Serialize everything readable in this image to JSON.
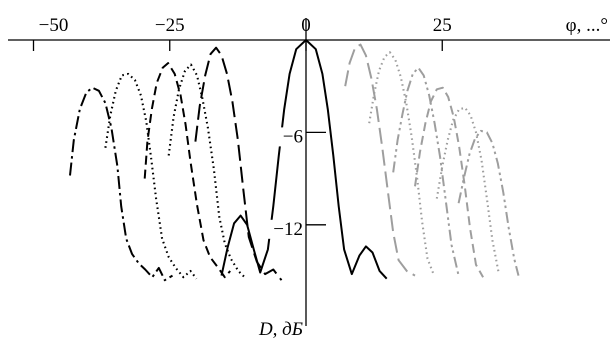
{
  "chart_data": {
    "type": "line",
    "title": "",
    "xlabel": "φ, ...°",
    "ylabel": "D, дБ",
    "xlim": [
      -50,
      40
    ],
    "ylim": [
      -17,
      0
    ],
    "x_ticks": [
      {
        "value": -50,
        "label": "−50"
      },
      {
        "value": -25,
        "label": "−25"
      },
      {
        "value": 0,
        "label": "0"
      },
      {
        "value": 25,
        "label": "25"
      }
    ],
    "y_ticks": [
      {
        "value": -6,
        "label": "−6"
      },
      {
        "value": -12,
        "label": "−12"
      }
    ],
    "grid": false,
    "legend": "none",
    "series": [
      {
        "values": [
          [
            -43.3,
            -8.8
          ],
          [
            -42.6,
            -6.5
          ],
          [
            -41.5,
            -4.5
          ],
          [
            -40.3,
            -3.4
          ],
          [
            -39.2,
            -3.1
          ],
          [
            -38.0,
            -3.3
          ],
          [
            -36.8,
            -4.1
          ],
          [
            -35.7,
            -5.7
          ],
          [
            -34.6,
            -8.2
          ],
          [
            -33.9,
            -10.8
          ],
          [
            -33.0,
            -12.9
          ],
          [
            -31.9,
            -13.9
          ],
          [
            -30.7,
            -14.5
          ],
          [
            -29.5,
            -14.9
          ],
          [
            -28.2,
            -15.4
          ],
          [
            -27.0,
            -14.8
          ],
          [
            -25.9,
            -15.6
          ],
          [
            -24.5,
            -15.3
          ]
        ],
        "color": "#000000",
        "style": "dashdot"
      },
      {
        "values": [
          [
            -36.8,
            -7.0
          ],
          [
            -35.9,
            -4.9
          ],
          [
            -34.9,
            -3.3
          ],
          [
            -33.8,
            -2.3
          ],
          [
            -32.6,
            -2.2
          ],
          [
            -31.4,
            -2.6
          ],
          [
            -30.3,
            -3.6
          ],
          [
            -29.3,
            -5.3
          ],
          [
            -28.4,
            -7.7
          ],
          [
            -27.5,
            -10.3
          ],
          [
            -26.4,
            -12.9
          ],
          [
            -25.2,
            -14.1
          ],
          [
            -23.9,
            -14.8
          ],
          [
            -22.5,
            -15.4
          ],
          [
            -21.2,
            -15.0
          ],
          [
            -20.1,
            -15.5
          ]
        ],
        "color": "#000000",
        "style": "dotted"
      },
      {
        "values": [
          [
            -29.6,
            -9.0
          ],
          [
            -29.1,
            -6.6
          ],
          [
            -28.3,
            -4.5
          ],
          [
            -27.4,
            -2.8
          ],
          [
            -26.3,
            -1.8
          ],
          [
            -25.3,
            -1.5
          ],
          [
            -24.1,
            -2.2
          ],
          [
            -23.0,
            -3.6
          ],
          [
            -22.1,
            -5.5
          ],
          [
            -21.2,
            -7.9
          ],
          [
            -20.0,
            -10.7
          ],
          [
            -18.8,
            -13.0
          ],
          [
            -17.6,
            -14.1
          ],
          [
            -16.1,
            -14.8
          ],
          [
            -14.9,
            -15.4
          ],
          [
            -13.9,
            -15.0
          ]
        ],
        "color": "#000000",
        "style": "dashed"
      },
      {
        "values": [
          [
            -25.2,
            -7.5
          ],
          [
            -24.3,
            -5.0
          ],
          [
            -23.3,
            -3.2
          ],
          [
            -22.2,
            -2.0
          ],
          [
            -21.1,
            -1.6
          ],
          [
            -20.0,
            -2.3
          ],
          [
            -19.0,
            -3.8
          ],
          [
            -18.0,
            -5.7
          ],
          [
            -16.9,
            -8.4
          ],
          [
            -15.9,
            -11.5
          ],
          [
            -14.9,
            -13.2
          ],
          [
            -13.8,
            -14.2
          ],
          [
            -12.4,
            -15.0
          ],
          [
            -11.0,
            -15.5
          ]
        ],
        "color": "#000000",
        "style": "dotted"
      },
      {
        "values": [
          [
            -20.3,
            -6.6
          ],
          [
            -19.5,
            -4.3
          ],
          [
            -18.5,
            -2.3
          ],
          [
            -17.5,
            -0.9
          ],
          [
            -16.5,
            -0.5
          ],
          [
            -15.5,
            -1.0
          ],
          [
            -14.5,
            -2.2
          ],
          [
            -13.5,
            -4.0
          ],
          [
            -12.5,
            -6.5
          ],
          [
            -11.5,
            -9.7
          ],
          [
            -10.5,
            -12.8
          ],
          [
            -9.0,
            -14.4
          ],
          [
            -7.5,
            -15.2
          ],
          [
            -6.0,
            -14.9
          ],
          [
            -4.5,
            -15.6
          ]
        ],
        "color": "#000000",
        "style": "longdash"
      },
      {
        "values": [
          [
            -15.5,
            -15.3
          ],
          [
            -14.4,
            -13.5
          ],
          [
            -13.2,
            -11.9
          ],
          [
            -12.0,
            -11.4
          ],
          [
            -10.8,
            -12.0
          ],
          [
            -9.5,
            -13.7
          ],
          [
            -8.4,
            -15.1
          ],
          [
            -7.0,
            -13.6
          ],
          [
            -6.0,
            -10.8
          ],
          [
            -5.0,
            -7.5
          ],
          [
            -4.0,
            -4.5
          ],
          [
            -3.0,
            -2.2
          ],
          [
            -1.8,
            -0.6
          ],
          [
            0.0,
            0.0
          ],
          [
            1.8,
            -0.6
          ],
          [
            3.0,
            -2.2
          ],
          [
            4.0,
            -4.5
          ],
          [
            5.0,
            -7.5
          ],
          [
            6.0,
            -10.8
          ],
          [
            7.0,
            -13.6
          ],
          [
            8.4,
            -15.2
          ],
          [
            9.8,
            -14.0
          ],
          [
            11.0,
            -13.4
          ],
          [
            12.2,
            -13.8
          ],
          [
            13.5,
            -15.0
          ],
          [
            14.8,
            -15.5
          ]
        ],
        "color": "#000000",
        "style": "solid"
      },
      {
        "values": [
          [
            7.2,
            -3.0
          ],
          [
            8.0,
            -1.5
          ],
          [
            9.0,
            -0.5
          ],
          [
            10.0,
            -0.3
          ],
          [
            11.0,
            -1.0
          ],
          [
            12.0,
            -2.5
          ],
          [
            13.0,
            -4.5
          ],
          [
            14.0,
            -7.0
          ],
          [
            15.0,
            -9.8
          ],
          [
            16.0,
            -12.5
          ],
          [
            17.0,
            -14.3
          ],
          [
            18.5,
            -15.0
          ],
          [
            20.0,
            -15.3
          ]
        ],
        "color": "#9e9e9e",
        "style": "longdash"
      },
      {
        "values": [
          [
            11.6,
            -5.4
          ],
          [
            12.5,
            -3.5
          ],
          [
            13.4,
            -2.0
          ],
          [
            14.4,
            -1.1
          ],
          [
            15.4,
            -0.8
          ],
          [
            16.4,
            -1.3
          ],
          [
            17.4,
            -2.4
          ],
          [
            18.4,
            -4.1
          ],
          [
            19.4,
            -6.3
          ],
          [
            20.4,
            -9.0
          ],
          [
            21.3,
            -11.8
          ],
          [
            22.3,
            -14.2
          ],
          [
            23.5,
            -15.3
          ]
        ],
        "color": "#9e9e9e",
        "style": "dotted"
      },
      {
        "values": [
          [
            16.0,
            -8.6
          ],
          [
            16.8,
            -6.5
          ],
          [
            17.7,
            -4.8
          ],
          [
            18.6,
            -3.3
          ],
          [
            19.6,
            -2.2
          ],
          [
            20.6,
            -1.8
          ],
          [
            21.6,
            -2.3
          ],
          [
            22.6,
            -3.6
          ],
          [
            23.6,
            -5.4
          ],
          [
            24.6,
            -7.6
          ],
          [
            25.6,
            -10.3
          ],
          [
            26.7,
            -13.3
          ],
          [
            28.0,
            -15.3
          ]
        ],
        "color": "#9e9e9e",
        "style": "dashdotdot"
      },
      {
        "values": [
          [
            20.0,
            -9.5
          ],
          [
            20.9,
            -7.3
          ],
          [
            21.9,
            -5.4
          ],
          [
            22.9,
            -4.0
          ],
          [
            24.0,
            -3.2
          ],
          [
            25.1,
            -3.1
          ],
          [
            26.1,
            -3.7
          ],
          [
            27.1,
            -5.0
          ],
          [
            28.1,
            -6.9
          ],
          [
            29.1,
            -9.4
          ],
          [
            30.1,
            -12.2
          ],
          [
            31.2,
            -14.6
          ],
          [
            32.5,
            -15.4
          ]
        ],
        "color": "#9e9e9e",
        "style": "dashed"
      },
      {
        "values": [
          [
            24.0,
            -10.3
          ],
          [
            25.0,
            -8.2
          ],
          [
            26.0,
            -6.5
          ],
          [
            27.0,
            -5.2
          ],
          [
            28.1,
            -4.5
          ],
          [
            29.2,
            -4.4
          ],
          [
            30.2,
            -4.9
          ],
          [
            31.2,
            -6.0
          ],
          [
            32.2,
            -7.8
          ],
          [
            33.2,
            -10.3
          ],
          [
            34.2,
            -13.0
          ],
          [
            35.4,
            -15.2
          ]
        ],
        "color": "#9e9e9e",
        "style": "dotted"
      },
      {
        "values": [
          [
            28.0,
            -10.6
          ],
          [
            29.0,
            -8.9
          ],
          [
            30.0,
            -7.4
          ],
          [
            31.0,
            -6.4
          ],
          [
            32.1,
            -5.9
          ],
          [
            33.2,
            -6.0
          ],
          [
            34.2,
            -6.7
          ],
          [
            35.2,
            -8.0
          ],
          [
            36.2,
            -9.9
          ],
          [
            37.2,
            -12.2
          ],
          [
            38.2,
            -14.2
          ],
          [
            39.0,
            -15.3
          ]
        ],
        "color": "#9e9e9e",
        "style": "dashdotdot"
      }
    ]
  }
}
